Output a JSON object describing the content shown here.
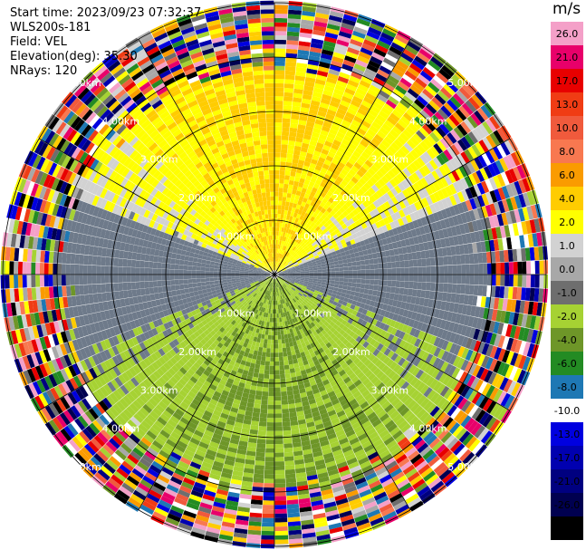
{
  "header": {
    "start_time": "Start time: 2023/09/23 07:32:37",
    "station": "WLS200s-181",
    "field": "Field: VEL",
    "elevation": "Elevation(deg): 35.30",
    "nrays": "NRays: 120"
  },
  "colorbar": {
    "unit": "m/s",
    "levels": [
      {
        "label": "26.0",
        "color": "#f4a0c8"
      },
      {
        "label": "21.0",
        "color": "#e8006a"
      },
      {
        "label": "17.0",
        "color": "#e80000"
      },
      {
        "label": "13.0",
        "color": "#f03c14"
      },
      {
        "label": "10.0",
        "color": "#f05a3c"
      },
      {
        "label": "8.0",
        "color": "#f87850"
      },
      {
        "label": "6.0",
        "color": "#fa9b00"
      },
      {
        "label": "4.0",
        "color": "#ffcc00"
      },
      {
        "label": "2.0",
        "color": "#ffff00"
      },
      {
        "label": "1.0",
        "color": "#d2d2d2"
      },
      {
        "label": "0.0",
        "color": "#a8a8a8"
      },
      {
        "label": "-1.0",
        "color": "#6e6e6e"
      },
      {
        "label": "-2.0",
        "color": "#a6d233"
      },
      {
        "label": "-4.0",
        "color": "#6e9628"
      },
      {
        "label": "-6.0",
        "color": "#238b23"
      },
      {
        "label": "-8.0",
        "color": "#1e78b4"
      },
      {
        "label": "-10.0",
        "color": "#ffffff"
      },
      {
        "label": "-13.0",
        "color": "#0000e0"
      },
      {
        "label": "-17.0",
        "color": "#0000b0"
      },
      {
        "label": "-21.0",
        "color": "#000080"
      },
      {
        "label": "-26.0",
        "color": "#000050"
      },
      {
        "label": "-30.0",
        "color": "#000000"
      }
    ]
  },
  "chart_data": {
    "type": "heatmap",
    "projection": "polar-ppi",
    "field": "VEL",
    "units": "m/s",
    "n_rays": 120,
    "range_rings_km": [
      1.0,
      2.0,
      3.0,
      4.0,
      5.0
    ],
    "ring_labels": [
      "1.00km",
      "2.00km",
      "3.00km",
      "4.00km",
      "5.00km"
    ],
    "spokes_deg": [
      0,
      30,
      60,
      90,
      120,
      150,
      180,
      210,
      240,
      270,
      300,
      330
    ],
    "velocity_pattern": {
      "north_sector": "positive ~2.0 to 4.0 m/s (yellow)",
      "south_sector": "negative ~-2.0 to -4.0 m/s (green)",
      "east_west": "near zero ~-1.0 m/s (grey)",
      "beyond_4km": "noise (random values)"
    }
  }
}
